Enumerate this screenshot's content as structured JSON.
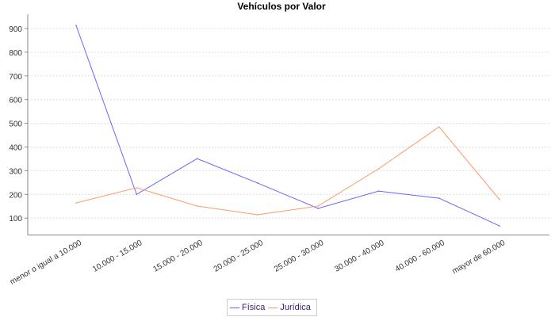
{
  "chart_data": {
    "type": "line",
    "title": "Vehículos por Valor",
    "xlabel": "",
    "ylabel": "",
    "categories": [
      "menor o igual a 10.000",
      "10.000 - 15.000",
      "15.000 - 20.000",
      "20.000 - 25.000",
      "25.000 - 30.000",
      "30.000 - 40.000",
      "40.000 - 60.000",
      "mayor de 60.000"
    ],
    "series": [
      {
        "name": "Física",
        "color": "#6666ff",
        "values": [
          913,
          200,
          351,
          248,
          141,
          214,
          184,
          67
        ]
      },
      {
        "name": "Jurídica",
        "color": "#ff9966",
        "values": [
          164,
          228,
          151,
          114,
          151,
          308,
          485,
          178
        ]
      }
    ],
    "yticks": [
      100,
      200,
      300,
      400,
      500,
      600,
      700,
      800,
      900
    ],
    "ylim": [
      30,
      960
    ],
    "grid": true,
    "legend_position": "bottom"
  }
}
